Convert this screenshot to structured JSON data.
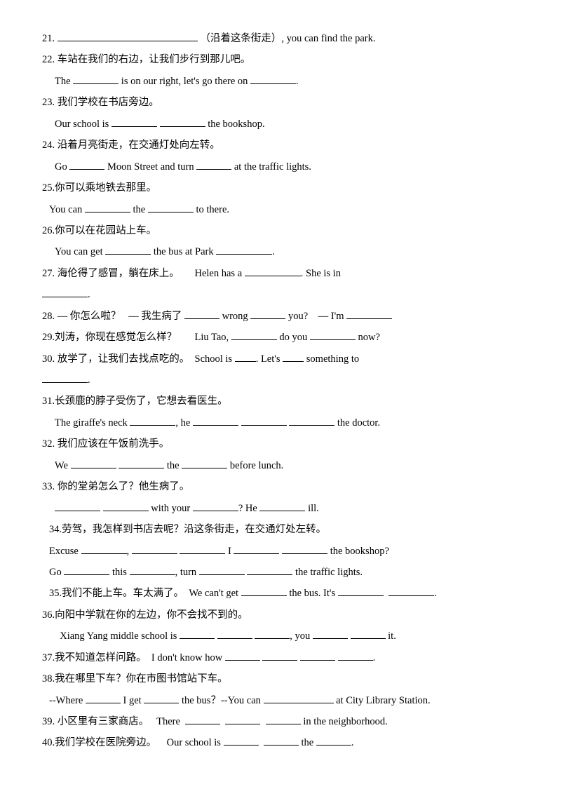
{
  "text_color": "#000000",
  "bg_color": "#ffffff",
  "font_family": "Times New Roman / SimSun",
  "font_size_pt": 11,
  "lines": {
    "l21": {
      "num": "21.",
      "after_blank": "（沿着这条街走）, you can find the park."
    },
    "l22a": {
      "num": "22.",
      "zh": "车站在我们的右边，让我们步行到那儿吧。"
    },
    "l22b": {
      "pre": "The",
      "mid": "is on our right, let's go there on",
      "end": "."
    },
    "l23a": {
      "num": "23.",
      "zh": "我们学校在书店旁边。"
    },
    "l23b": {
      "pre": "Our school is",
      "end": "the bookshop."
    },
    "l24a": {
      "num": "24.",
      "zh": "沿着月亮街走，在交通灯处向左转。"
    },
    "l24b": {
      "pre": "Go",
      "mid": "Moon Street and turn",
      "end": "at the traffic lights."
    },
    "l25a": {
      "num": "25.",
      "zh": "你可以乘地铁去那里。"
    },
    "l25b": {
      "pre": "You can",
      "mid": "the",
      "end": "to there."
    },
    "l26a": {
      "num": "26.",
      "zh": "你可以在花园站上车。"
    },
    "l26b": {
      "pre": "You can get",
      "mid": "the bus at Park",
      "end": "."
    },
    "l27a": {
      "num": "27.",
      "zh": "海伦得了感冒，躺在床上。",
      "en": "Helen has a",
      "end": ". She is in"
    },
    "l27b": {
      "end": "."
    },
    "l28": {
      "num": "28.",
      "zh1": "— 你怎么啦？",
      "zh2": "— 我生病了",
      "mid1": "wrong",
      "mid2": "you?",
      "end": "— I'm"
    },
    "l29": {
      "num": "29.",
      "zh": "刘涛，你现在感觉怎么样？",
      "en1": "Liu Tao,",
      "en2": "do you",
      "en3": "now?"
    },
    "l30a": {
      "num": "30.",
      "zh": "放学了，让我们去找点吃的。",
      "en1": "School is",
      "en2": ". Let's",
      "en3": "something to"
    },
    "l30b": {
      "end": "."
    },
    "l31a": {
      "num": "31.",
      "zh": "长颈鹿的脖子受伤了，它想去看医生。"
    },
    "l31b": {
      "pre": "The giraffe's neck",
      "mid": ", he",
      "end": "the doctor."
    },
    "l32a": {
      "num": "32.",
      "zh": "我们应该在午饭前洗手。"
    },
    "l32b": {
      "pre": "We",
      "mid": "the",
      "end": "before lunch."
    },
    "l33a": {
      "num": "33.",
      "zh": "你的堂弟怎么了？他生病了。"
    },
    "l33b": {
      "mid1": "with your",
      "mid2": "? He",
      "end": "ill."
    },
    "l34a": {
      "num": "34.",
      "zh": "劳驾，我怎样到书店去呢？沿这条街走，在交通灯处左转。"
    },
    "l34b": {
      "pre": "Excuse",
      "sep": ",",
      "mid": "I",
      "end": "the bookshop?"
    },
    "l34c": {
      "pre": "Go",
      "mid1": "this",
      "mid2": ", turn",
      "end": "the traffic lights."
    },
    "l35": {
      "num": "35.",
      "zh": "我们不能上车。车太满了。",
      "en1": "We can't get",
      "en2": "the bus. It's",
      "end": "."
    },
    "l36a": {
      "num": "36.",
      "zh": "向阳中学就在你的左边，你不会找不到的。"
    },
    "l36b": {
      "pre": "Xiang Yang middle school is",
      "mid": ", you",
      "end": "it."
    },
    "l37": {
      "num": "37.",
      "zh": "我不知道怎样问路。",
      "en": "I don't know how",
      "end": "."
    },
    "l38a": {
      "num": "38.",
      "zh": "我在哪里下车？你在市图书馆站下车。"
    },
    "l38b": {
      "pre": "--Where",
      "mid1": "I get",
      "mid2": "the bus？--You can",
      "end": "at City Library Station."
    },
    "l39": {
      "num": "39.",
      "zh": "小区里有三家商店。",
      "en": "There",
      "end": "in the neighborhood."
    },
    "l40": {
      "num": "40.",
      "zh": "我们学校在医院旁边。",
      "en1": "Our school is",
      "en2": "the",
      "end": "."
    }
  }
}
